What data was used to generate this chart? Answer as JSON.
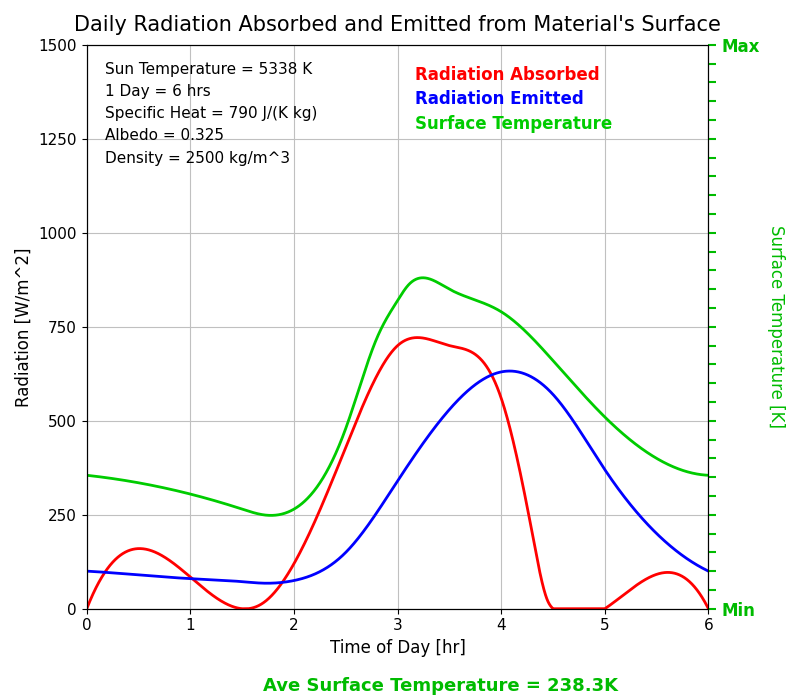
{
  "title": "Daily Radiation Absorbed and Emitted from Material's Surface",
  "xlabel": "Time of Day [hr]",
  "ylabel_left": "Radiation [W/m^2]",
  "ylabel_right": "Surface Temperature [K]",
  "annotation_text": "Sun Temperature = 5338 K\n1 Day = 6 hrs\nSpecific Heat = 790 J/(K kg)\nAlbedo = 0.325\nDensity = 2500 kg/m^3",
  "legend_labels": [
    "Radiation Absorbed",
    "Radiation Emitted",
    "Surface Temperature"
  ],
  "legend_colors": [
    "#ff0000",
    "#0000ff",
    "#00cc00"
  ],
  "ave_temp_text": "Ave Surface Temperature = 238.3K",
  "ave_temp_color": "#00bb00",
  "ylim_left": [
    0,
    1500
  ],
  "xlim": [
    0,
    6
  ],
  "xticks": [
    0,
    1,
    2,
    3,
    4,
    5,
    6
  ],
  "yticks_left": [
    0,
    250,
    500,
    750,
    1000,
    1250,
    1500
  ],
  "background_color": "#ffffff",
  "grid_color": "#c0c0c0",
  "title_fontsize": 15,
  "axis_label_fontsize": 12,
  "annotation_fontsize": 11,
  "legend_fontsize": 12,
  "right_axis_color": "#00bb00",
  "right_ticks_max_label": "Max",
  "right_ticks_min_label": "Min",
  "red_t": [
    0.0,
    1.5,
    1.7,
    2.0,
    2.5,
    2.8,
    3.0,
    3.5,
    4.0,
    4.3,
    4.45,
    4.5,
    5.0,
    6.0
  ],
  "red_y": [
    0.0,
    0.0,
    15.0,
    120.0,
    430.0,
    620.0,
    700.0,
    700.0,
    560.0,
    200.0,
    20.0,
    0.0,
    0.0,
    0.0
  ],
  "blue_t": [
    0.0,
    0.5,
    1.0,
    1.5,
    1.7,
    2.0,
    2.5,
    3.0,
    3.5,
    4.0,
    4.5,
    5.0,
    5.5,
    6.0
  ],
  "blue_y": [
    100.0,
    90.0,
    80.0,
    72.0,
    68.0,
    75.0,
    150.0,
    340.0,
    530.0,
    630.0,
    570.0,
    370.0,
    200.0,
    100.0
  ],
  "green_t": [
    0.0,
    0.5,
    1.0,
    1.5,
    1.7,
    2.0,
    2.5,
    2.8,
    3.0,
    3.1,
    3.5,
    4.0,
    4.5,
    5.0,
    5.5,
    6.0
  ],
  "green_y": [
    355.0,
    335.0,
    305.0,
    265.0,
    250.0,
    265.0,
    480.0,
    720.0,
    820.0,
    860.0,
    850.0,
    790.0,
    660.0,
    510.0,
    400.0,
    355.0
  ]
}
